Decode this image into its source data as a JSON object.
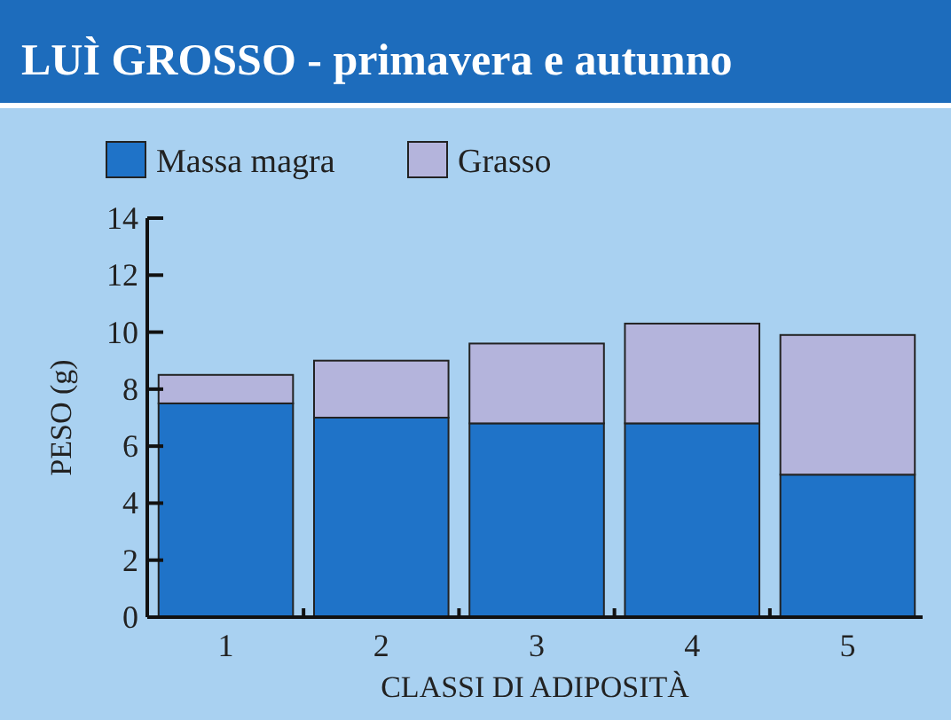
{
  "chart_data": {
    "type": "bar",
    "title": "LUÌ GROSSO - primavera e autunno",
    "xlabel": "CLASSI DI ADIPOSITÀ",
    "ylabel": "PESO (g)",
    "categories": [
      "1",
      "2",
      "3",
      "4",
      "5"
    ],
    "stacked": true,
    "series": [
      {
        "name": "Massa magra",
        "color": "#1f73c8",
        "values": [
          7.5,
          7.0,
          6.8,
          6.8,
          5.0
        ]
      },
      {
        "name": "Grasso",
        "color": "#b4b4dc",
        "values": [
          1.0,
          2.0,
          2.8,
          3.5,
          4.9
        ]
      }
    ],
    "ylim": [
      0,
      14
    ],
    "yticks": [
      0,
      2,
      4,
      6,
      8,
      10,
      12,
      14
    ],
    "legend": "top left",
    "grid": false
  }
}
